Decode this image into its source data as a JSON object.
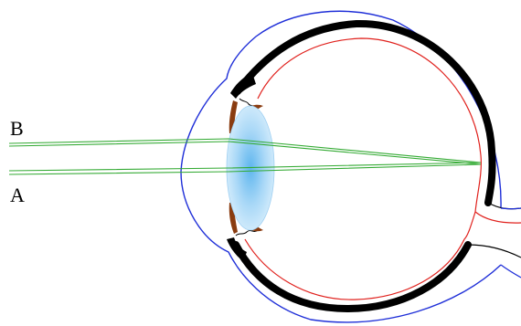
{
  "labels": {
    "ray_b": "B",
    "ray_a": "A"
  },
  "colors": {
    "outer_outline": "#1f2fd8",
    "retina": "#e0201c",
    "sclera": "#000000",
    "ray": "#33aa33",
    "iris": "#8a3c10",
    "lens_center": "#5fb6ee",
    "lens_edge": "#d8eefc"
  }
}
